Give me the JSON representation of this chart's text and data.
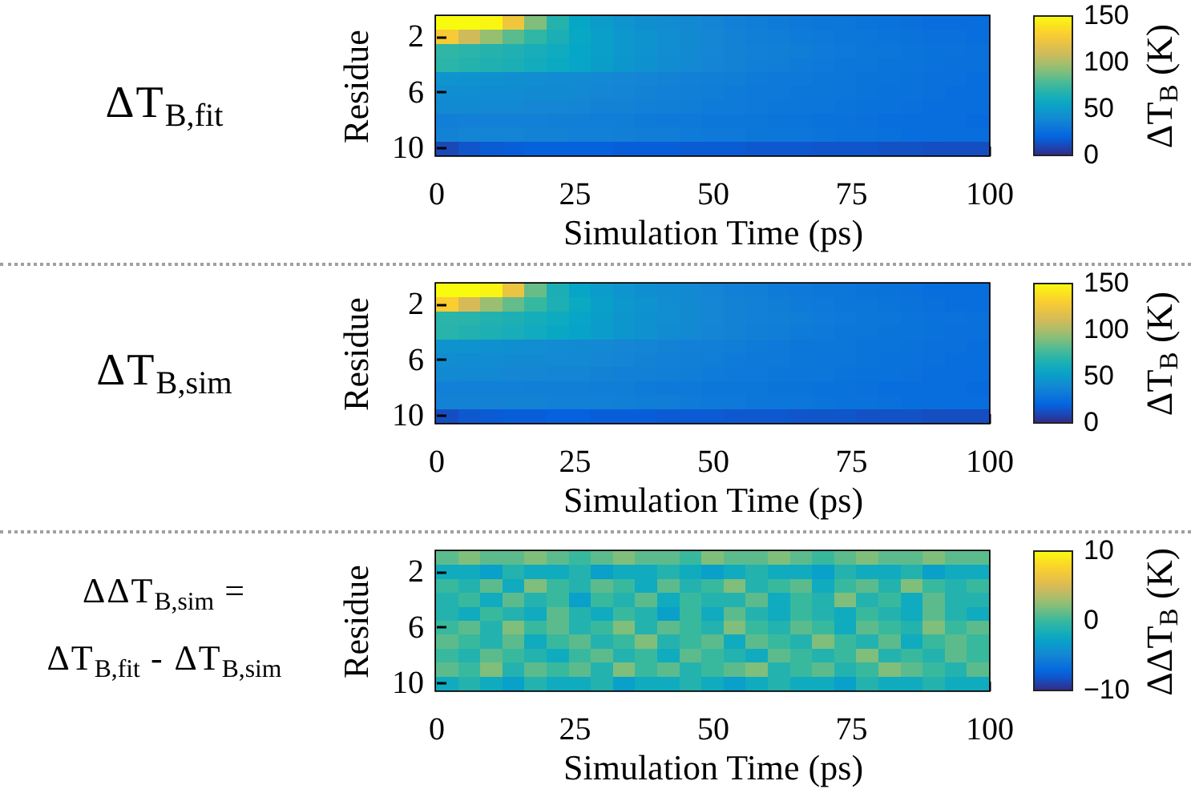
{
  "chart_data": [
    {
      "type": "heatmap",
      "title": "ΔT$_{B,fit}$",
      "xlabel": "Simulation Time (ps)",
      "ylabel": "Residue",
      "clabel": "ΔT$_{B}$ (K)",
      "x": [
        2,
        6,
        10,
        14,
        18,
        22,
        26,
        30,
        34,
        38,
        42,
        46,
        50,
        54,
        58,
        62,
        66,
        70,
        74,
        78,
        82,
        86,
        90,
        94,
        98
      ],
      "xlim": [
        0,
        100
      ],
      "xticks": [
        0,
        25,
        50,
        75,
        100
      ],
      "y_categories": [
        null,
        "2",
        null,
        null,
        null,
        "6",
        null,
        null,
        null,
        "10"
      ],
      "cells": [
        [
          150,
          150,
          148,
          125,
          90,
          68,
          56,
          50,
          46,
          43,
          41,
          39,
          37,
          35,
          33,
          32,
          31,
          30,
          29,
          28,
          27,
          26,
          25,
          25,
          24
        ],
        [
          128,
          110,
          95,
          82,
          72,
          64,
          57,
          52,
          48,
          45,
          42,
          40,
          38,
          36,
          34,
          33,
          32,
          31,
          30,
          29,
          28,
          27,
          26,
          26,
          25
        ],
        [
          72,
          70,
          68,
          66,
          63,
          60,
          56,
          52,
          48,
          45,
          42,
          40,
          38,
          36,
          35,
          34,
          33,
          32,
          31,
          30,
          29,
          28,
          27,
          27,
          26
        ],
        [
          70,
          68,
          66,
          64,
          61,
          58,
          55,
          51,
          47,
          44,
          41,
          39,
          37,
          36,
          34,
          33,
          32,
          31,
          30,
          29,
          28,
          28,
          27,
          26,
          26
        ],
        [
          46,
          45,
          44,
          43,
          42,
          41,
          40,
          39,
          38,
          37,
          36,
          35,
          34,
          33,
          32,
          31,
          31,
          30,
          29,
          28,
          28,
          27,
          26,
          26,
          25
        ],
        [
          42,
          42,
          41,
          41,
          40,
          40,
          39,
          38,
          37,
          36,
          35,
          34,
          33,
          32,
          31,
          31,
          30,
          29,
          29,
          28,
          27,
          27,
          26,
          25,
          25
        ],
        [
          40,
          40,
          39,
          39,
          38,
          38,
          37,
          36,
          36,
          35,
          34,
          33,
          32,
          32,
          31,
          30,
          29,
          29,
          28,
          27,
          27,
          26,
          25,
          25,
          24
        ],
        [
          34,
          35,
          35,
          35,
          35,
          34,
          34,
          33,
          33,
          32,
          31,
          31,
          30,
          30,
          29,
          28,
          28,
          27,
          27,
          26,
          25,
          25,
          24,
          24,
          23
        ],
        [
          36,
          37,
          37,
          37,
          36,
          36,
          35,
          35,
          34,
          33,
          33,
          32,
          31,
          31,
          30,
          29,
          29,
          28,
          27,
          27,
          26,
          25,
          25,
          24,
          24
        ],
        [
          10,
          14,
          16,
          17,
          18,
          18,
          18,
          18,
          17,
          17,
          17,
          16,
          16,
          16,
          15,
          15,
          15,
          14,
          14,
          14,
          13,
          13,
          12,
          12,
          12
        ]
      ],
      "clim": [
        0,
        150
      ],
      "cticks": [
        0,
        50,
        100,
        150
      ]
    },
    {
      "type": "heatmap",
      "title": "ΔT$_{B,sim}$",
      "xlabel": "Simulation Time (ps)",
      "ylabel": "Residue",
      "clabel": "ΔT$_{B}$ (K)",
      "x": [
        2,
        6,
        10,
        14,
        18,
        22,
        26,
        30,
        34,
        38,
        42,
        46,
        50,
        54,
        58,
        62,
        66,
        70,
        74,
        78,
        82,
        86,
        90,
        94,
        98
      ],
      "xlim": [
        0,
        100
      ],
      "xticks": [
        0,
        25,
        50,
        75,
        100
      ],
      "y_categories": [
        null,
        "2",
        null,
        null,
        null,
        "6",
        null,
        null,
        null,
        "10"
      ],
      "cells": [
        [
          150,
          150,
          147,
          122,
          85,
          64,
          55,
          50,
          46,
          43,
          41,
          39,
          37,
          35,
          34,
          32,
          31,
          30,
          29,
          28,
          27,
          26,
          25,
          24,
          24
        ],
        [
          130,
          112,
          96,
          84,
          74,
          65,
          58,
          52,
          48,
          45,
          42,
          40,
          38,
          36,
          35,
          33,
          32,
          31,
          30,
          29,
          28,
          27,
          26,
          25,
          25
        ],
        [
          70,
          69,
          67,
          65,
          62,
          59,
          55,
          51,
          47,
          44,
          42,
          40,
          38,
          36,
          35,
          34,
          33,
          32,
          31,
          30,
          29,
          28,
          27,
          27,
          26
        ],
        [
          69,
          67,
          65,
          63,
          60,
          57,
          54,
          50,
          47,
          44,
          41,
          39,
          37,
          36,
          34,
          33,
          32,
          31,
          30,
          29,
          28,
          28,
          27,
          26,
          26
        ],
        [
          45,
          45,
          44,
          43,
          42,
          41,
          40,
          39,
          38,
          37,
          36,
          35,
          34,
          33,
          32,
          31,
          30,
          30,
          29,
          28,
          28,
          27,
          26,
          26,
          25
        ],
        [
          42,
          41,
          41,
          40,
          40,
          39,
          39,
          38,
          37,
          36,
          35,
          34,
          33,
          32,
          31,
          31,
          30,
          29,
          29,
          28,
          27,
          27,
          26,
          25,
          25
        ],
        [
          40,
          39,
          39,
          38,
          38,
          37,
          37,
          36,
          35,
          35,
          34,
          33,
          32,
          31,
          31,
          30,
          29,
          29,
          28,
          27,
          27,
          26,
          25,
          25,
          24
        ],
        [
          35,
          35,
          35,
          35,
          34,
          34,
          34,
          33,
          33,
          32,
          31,
          31,
          30,
          30,
          29,
          28,
          28,
          27,
          27,
          26,
          25,
          25,
          24,
          24,
          23
        ],
        [
          36,
          36,
          36,
          36,
          36,
          35,
          35,
          35,
          34,
          33,
          33,
          32,
          31,
          31,
          30,
          29,
          29,
          28,
          27,
          27,
          26,
          25,
          25,
          24,
          24
        ],
        [
          12,
          15,
          16,
          17,
          17,
          18,
          18,
          17,
          17,
          17,
          16,
          16,
          16,
          15,
          15,
          15,
          14,
          14,
          14,
          13,
          13,
          13,
          12,
          12,
          12
        ]
      ],
      "clim": [
        0,
        150
      ],
      "cticks": [
        0,
        50,
        100,
        150
      ]
    },
    {
      "type": "heatmap",
      "title": "ΔΔT$_{B,sim}$ =\nΔT$_{B,fit}$ - ΔT$_{B,sim}$",
      "xlabel": "Simulation Time (ps)",
      "ylabel": "Residue",
      "clabel": "ΔΔT$_{B}$ (K)",
      "x": [
        2,
        6,
        10,
        14,
        18,
        22,
        26,
        30,
        34,
        38,
        42,
        46,
        50,
        54,
        58,
        62,
        66,
        70,
        74,
        78,
        82,
        86,
        90,
        94,
        98
      ],
      "xlim": [
        0,
        100
      ],
      "xticks": [
        0,
        25,
        50,
        75,
        100
      ],
      "y_categories": [
        null,
        "2",
        null,
        null,
        null,
        "6",
        null,
        null,
        null,
        "10"
      ],
      "cells": [
        [
          1,
          2,
          1,
          1,
          2,
          1,
          0,
          1,
          2,
          1,
          1,
          0,
          2,
          1,
          1,
          2,
          1,
          0,
          1,
          2,
          1,
          1,
          2,
          1,
          1
        ],
        [
          -2,
          -2,
          -3,
          -1,
          -2,
          -2,
          -1,
          -3,
          -2,
          -2,
          -1,
          -2,
          -3,
          -2,
          -1,
          -2,
          -2,
          -3,
          -1,
          -2,
          -2,
          -1,
          -3,
          -2,
          -2
        ],
        [
          0,
          -1,
          1,
          -2,
          2,
          0,
          -1,
          1,
          0,
          -2,
          1,
          -1,
          0,
          2,
          -1,
          0,
          1,
          -2,
          0,
          1,
          -1,
          2,
          0,
          -1,
          0
        ],
        [
          -1,
          0,
          -2,
          1,
          -1,
          0,
          -3,
          0,
          -1,
          1,
          -2,
          0,
          -1,
          -1,
          1,
          -2,
          0,
          -1,
          2,
          -1,
          0,
          -2,
          1,
          -1,
          -1
        ],
        [
          -1,
          -2,
          0,
          -1,
          -2,
          1,
          -1,
          -2,
          0,
          -1,
          -3,
          0,
          -2,
          1,
          -1,
          -2,
          0,
          -1,
          -2,
          0,
          -1,
          -2,
          1,
          -1,
          -2
        ],
        [
          0,
          1,
          -1,
          2,
          0,
          1,
          -1,
          0,
          2,
          -1,
          1,
          0,
          -1,
          2,
          0,
          -1,
          1,
          0,
          -2,
          1,
          0,
          -1,
          2,
          0,
          1
        ],
        [
          1,
          0,
          -1,
          1,
          -2,
          0,
          1,
          -1,
          0,
          2,
          -1,
          0,
          1,
          -2,
          1,
          0,
          -1,
          2,
          0,
          -1,
          1,
          -2,
          0,
          1,
          0
        ],
        [
          0,
          -1,
          1,
          0,
          -1,
          -2,
          0,
          1,
          -1,
          0,
          -2,
          1,
          0,
          -1,
          -2,
          1,
          0,
          -1,
          0,
          2,
          -1,
          0,
          -1,
          1,
          0
        ],
        [
          1,
          0,
          2,
          -1,
          1,
          0,
          1,
          -1,
          2,
          0,
          1,
          -1,
          0,
          1,
          2,
          -1,
          0,
          1,
          -1,
          0,
          2,
          1,
          0,
          -1,
          1
        ],
        [
          -2,
          -1,
          -2,
          -3,
          -1,
          -2,
          -2,
          -1,
          -3,
          -2,
          -2,
          -1,
          -2,
          -3,
          -2,
          -1,
          -2,
          -2,
          -3,
          -1,
          -2,
          -2,
          -1,
          -2,
          -2
        ]
      ],
      "clim": [
        -10,
        10
      ],
      "cticks": [
        -10,
        0,
        10
      ]
    }
  ]
}
